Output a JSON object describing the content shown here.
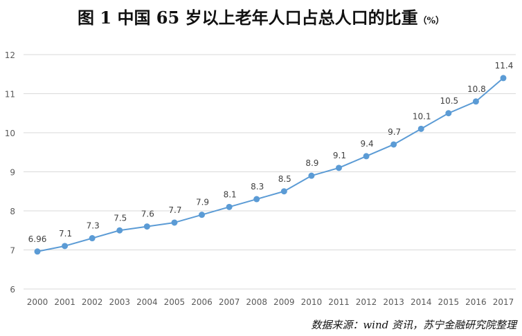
{
  "header": {
    "title": "图 1  中国 65 岁以上老年人口占总人口的比重",
    "unit": "（%）"
  },
  "source": "数据来源：wind 资讯，苏宁金融研究院整理",
  "chart_data": {
    "type": "line",
    "x": [
      "2000",
      "2001",
      "2002",
      "2003",
      "2004",
      "2005",
      "2006",
      "2007",
      "2008",
      "2009",
      "2010",
      "2011",
      "2012",
      "2013",
      "2014",
      "2015",
      "2016",
      "2017"
    ],
    "series": [
      {
        "values": [
          6.96,
          7.1,
          7.3,
          7.5,
          7.6,
          7.7,
          7.9,
          8.1,
          8.3,
          8.5,
          8.9,
          9.1,
          9.4,
          9.7,
          10.1,
          10.5,
          10.8,
          11.4
        ],
        "labels": [
          "6.96",
          "7.1",
          "7.3",
          "7.5",
          "7.6",
          "7.7",
          "7.9",
          "8.1",
          "8.3",
          "8.5",
          "8.9",
          "9.1",
          "9.4",
          "9.7",
          "10.1",
          "10.5",
          "10.8",
          "11.4"
        ],
        "color": "#5b9bd5"
      }
    ],
    "y_ticks": [
      "6",
      "7",
      "8",
      "9",
      "10",
      "11",
      "12"
    ],
    "ylim": [
      6,
      12
    ],
    "grid": "horizontal",
    "gridline_color": "#d9d9d9",
    "axis_text_color": "#595959"
  }
}
